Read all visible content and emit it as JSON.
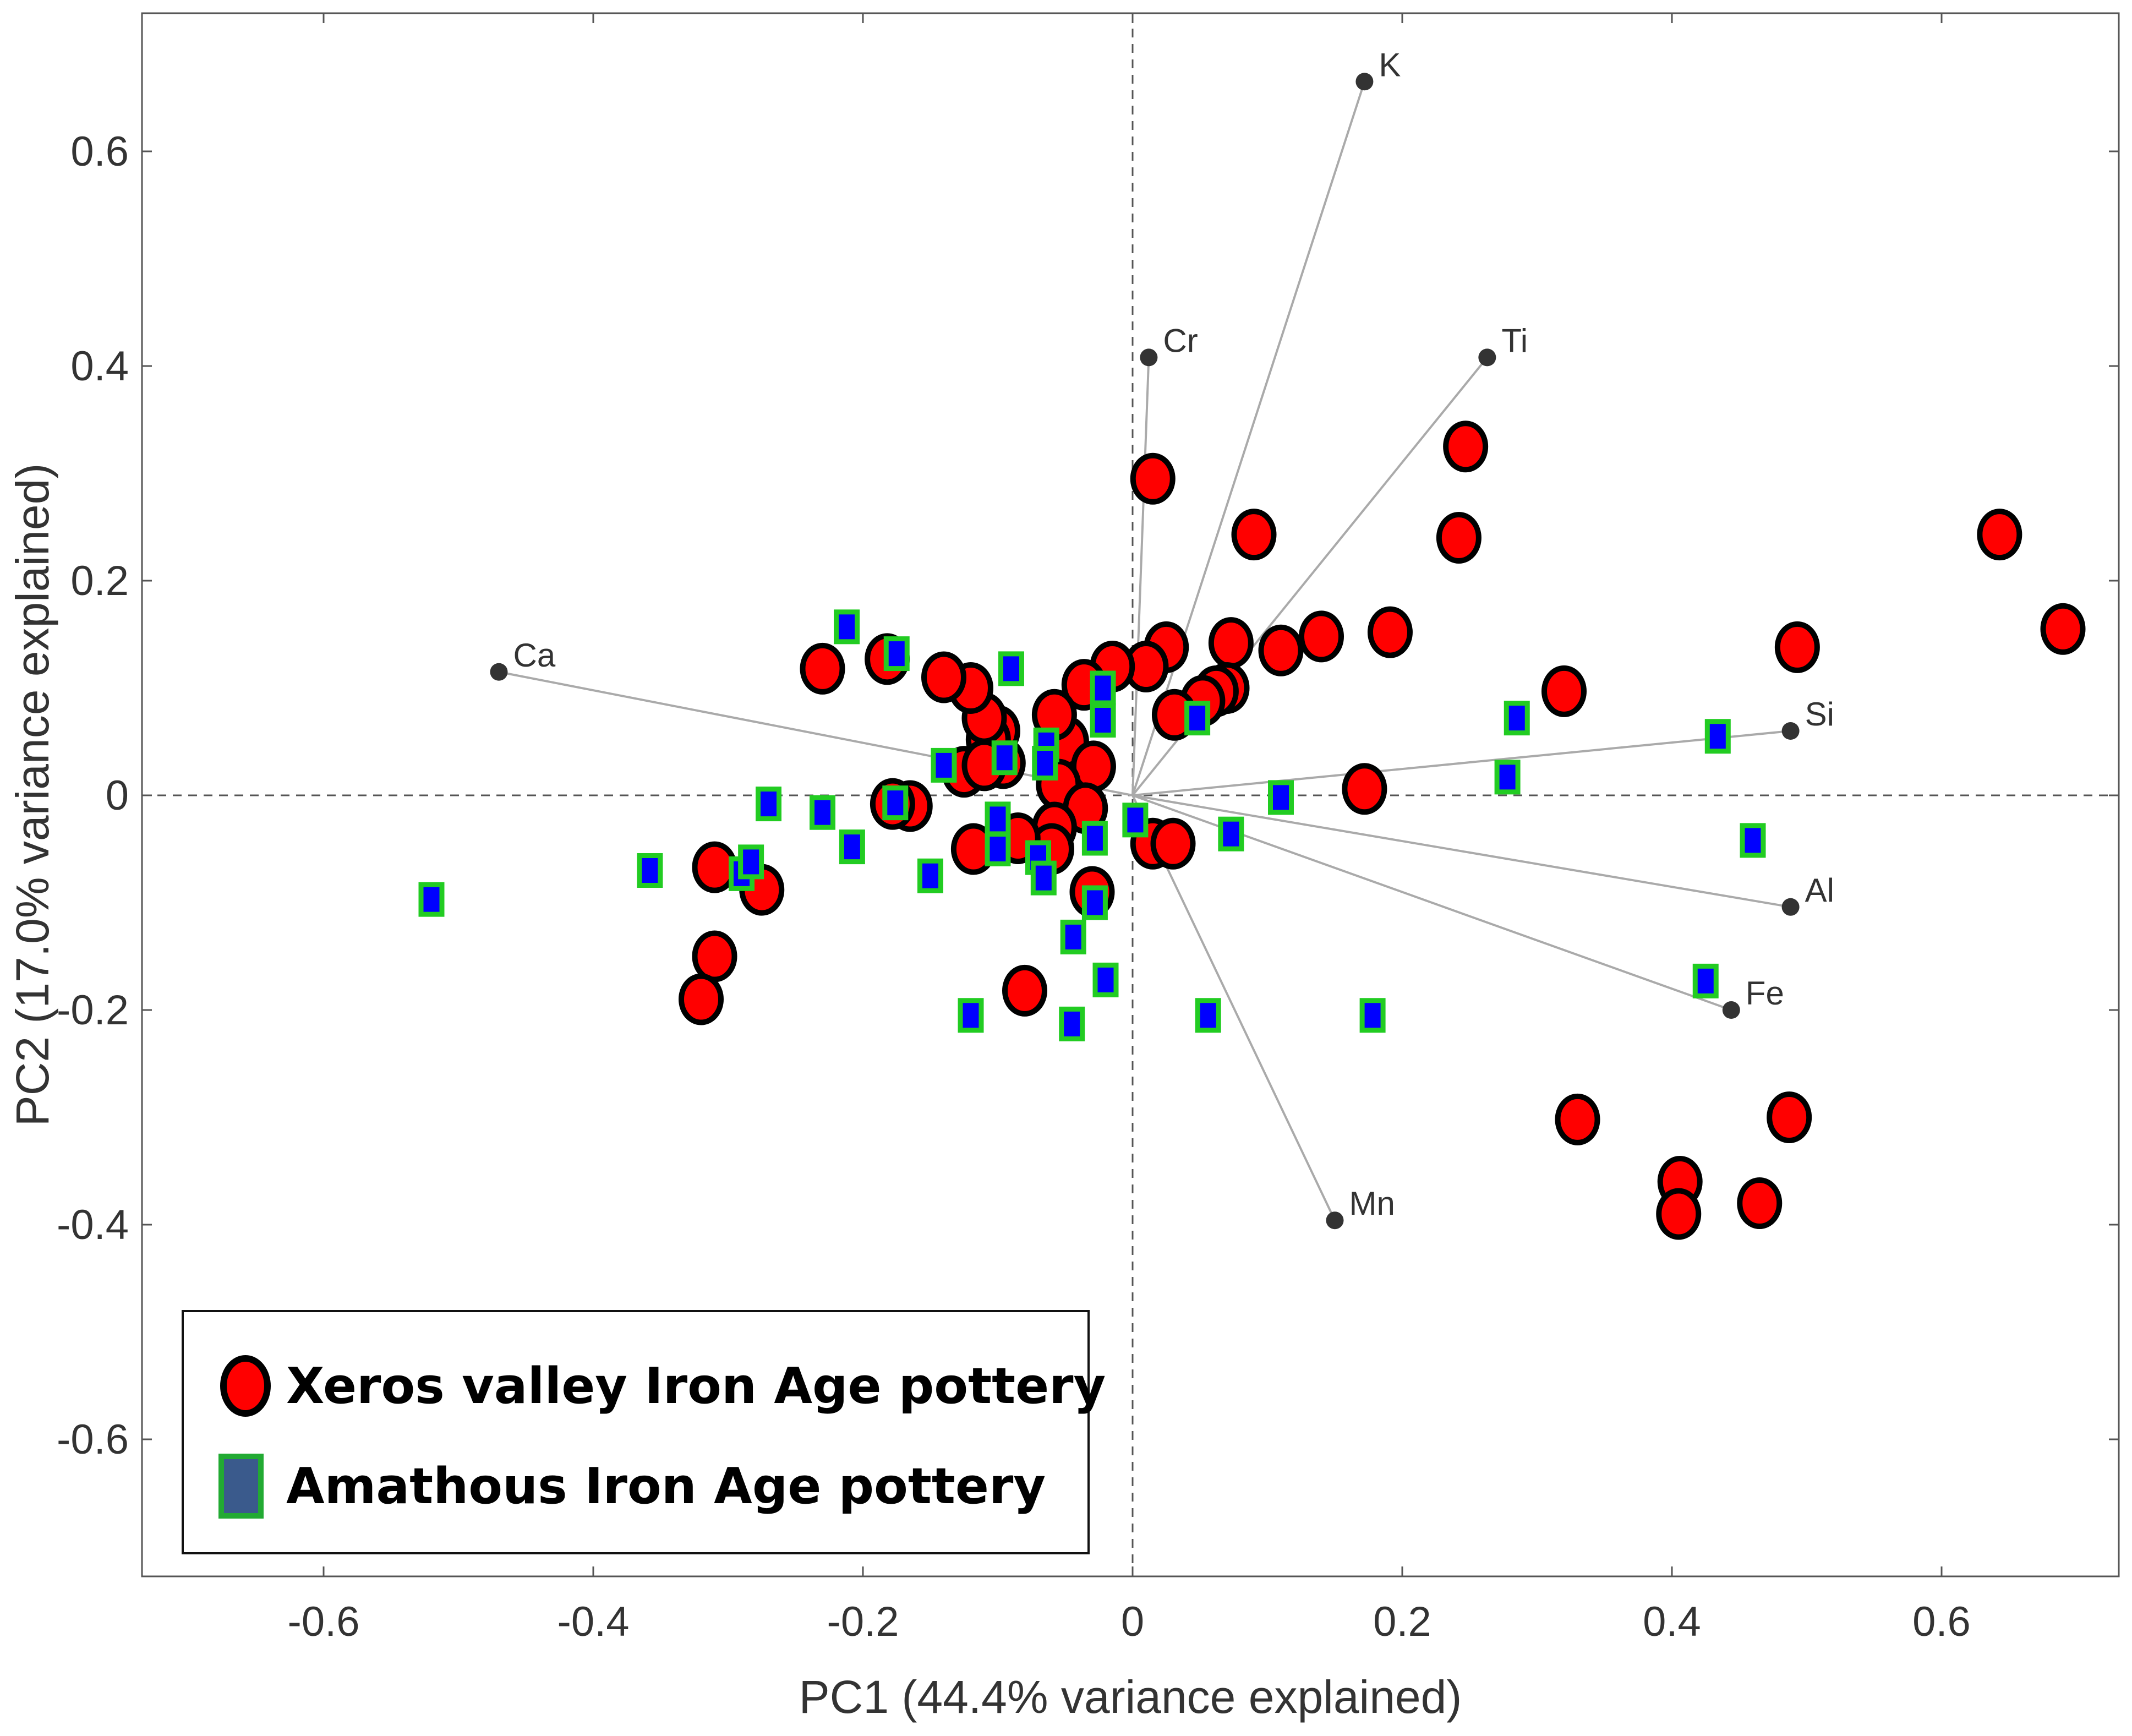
{
  "chart_data": {
    "type": "scatter",
    "title": "",
    "xlabel": "PC1 (44.4% variance explained)",
    "ylabel": "PC2 (17.0% variance explained)",
    "xlim": [
      -0.73,
      0.73
    ],
    "ylim": [
      -0.73,
      0.73
    ],
    "xticks": [
      -0.6,
      -0.4,
      -0.2,
      0,
      0.2,
      0.4,
      0.6
    ],
    "yticks": [
      -0.6,
      -0.4,
      -0.2,
      0,
      0.2,
      0.4,
      0.6
    ],
    "xtick_labels": [
      "-0.6",
      "-0.4",
      "-0.2",
      "0",
      "0.2",
      "0.4",
      "0.6"
    ],
    "ytick_labels": [
      "-0.6",
      "-0.4",
      "-0.2",
      "0",
      "0.2",
      "0.4",
      "0.6"
    ],
    "reference_lines": {
      "x": 0,
      "y": 0,
      "style": "dashed"
    },
    "grid": false,
    "legend_position": "bottom-left",
    "loadings": [
      {
        "name": "Ca",
        "x": -0.47,
        "y": 0.115
      },
      {
        "name": "Cr",
        "x": 0.012,
        "y": 0.408
      },
      {
        "name": "K",
        "x": 0.172,
        "y": 0.665
      },
      {
        "name": "Ti",
        "x": 0.263,
        "y": 0.408
      },
      {
        "name": "Si",
        "x": 0.488,
        "y": 0.06
      },
      {
        "name": "Al",
        "x": 0.488,
        "y": -0.104
      },
      {
        "name": "Fe",
        "x": 0.444,
        "y": -0.2
      },
      {
        "name": "Mn",
        "x": 0.15,
        "y": -0.396
      }
    ],
    "series": [
      {
        "name": "Xeros valley Iron Age pottery",
        "marker": "ellipse",
        "color": "#ff0000",
        "edge_color": "#000000",
        "points": [
          [
            0.69,
            0.155
          ],
          [
            0.643,
            0.243
          ],
          [
            0.493,
            0.138
          ],
          [
            0.32,
            0.097
          ],
          [
            0.191,
            0.152
          ],
          [
            0.14,
            0.148
          ],
          [
            0.11,
            0.135
          ],
          [
            0.073,
            0.142
          ],
          [
            0.07,
            0.1
          ],
          [
            0.062,
            0.097
          ],
          [
            0.052,
            0.088
          ],
          [
            0.031,
            0.075
          ],
          [
            0.025,
            0.138
          ],
          [
            0.01,
            0.12
          ],
          [
            -0.015,
            0.12
          ],
          [
            0.015,
            0.295
          ],
          [
            0.09,
            0.243
          ],
          [
            0.247,
            0.325
          ],
          [
            0.242,
            0.24
          ],
          [
            -0.036,
            0.103
          ],
          [
            -0.049,
            0.05
          ],
          [
            -0.029,
            0.027
          ],
          [
            -0.058,
            0.075
          ],
          [
            -0.055,
            0.01
          ],
          [
            -0.035,
            -0.012
          ],
          [
            -0.058,
            -0.03
          ],
          [
            -0.06,
            -0.05
          ],
          [
            -0.085,
            -0.04
          ],
          [
            -0.096,
            0.03
          ],
          [
            -0.1,
            0.06
          ],
          [
            -0.107,
            0.052
          ],
          [
            -0.11,
            0.072
          ],
          [
            -0.12,
            0.1
          ],
          [
            -0.125,
            0.022
          ],
          [
            -0.14,
            0.11
          ],
          [
            -0.11,
            0.028
          ],
          [
            -0.165,
            -0.01
          ],
          [
            -0.178,
            -0.008
          ],
          [
            -0.23,
            0.118
          ],
          [
            -0.182,
            0.127
          ],
          [
            -0.118,
            -0.05
          ],
          [
            -0.08,
            -0.182
          ],
          [
            -0.03,
            -0.09
          ],
          [
            0.015,
            -0.045
          ],
          [
            0.03,
            -0.045
          ],
          [
            0.172,
            0.006
          ],
          [
            -0.275,
            -0.088
          ],
          [
            -0.31,
            -0.067
          ],
          [
            -0.31,
            -0.15
          ],
          [
            -0.32,
            -0.19
          ],
          [
            0.33,
            -0.302
          ],
          [
            0.406,
            -0.36
          ],
          [
            0.405,
            -0.39
          ],
          [
            0.465,
            -0.38
          ],
          [
            0.487,
            -0.3
          ]
        ]
      },
      {
        "name": "Amathous Iron Age pottery",
        "marker": "square",
        "color": "#0000ff",
        "edge_color": "#22cc22",
        "points": [
          [
            -0.52,
            -0.097
          ],
          [
            -0.358,
            -0.07
          ],
          [
            -0.29,
            -0.073
          ],
          [
            -0.283,
            -0.062
          ],
          [
            -0.27,
            -0.008
          ],
          [
            -0.23,
            -0.016
          ],
          [
            -0.208,
            -0.048
          ],
          [
            -0.212,
            0.157
          ],
          [
            -0.175,
            0.132
          ],
          [
            -0.176,
            -0.007
          ],
          [
            -0.15,
            -0.075
          ],
          [
            -0.14,
            0.028
          ],
          [
            -0.12,
            -0.205
          ],
          [
            -0.1,
            -0.022
          ],
          [
            -0.1,
            -0.05
          ],
          [
            -0.095,
            0.035
          ],
          [
            -0.09,
            0.118
          ],
          [
            -0.07,
            -0.058
          ],
          [
            -0.064,
            0.047
          ],
          [
            -0.065,
            0.03
          ],
          [
            -0.066,
            -0.077
          ],
          [
            -0.045,
            -0.213
          ],
          [
            -0.044,
            -0.132
          ],
          [
            -0.028,
            -0.1
          ],
          [
            -0.028,
            -0.04
          ],
          [
            -0.022,
            0.1
          ],
          [
            -0.022,
            0.07
          ],
          [
            -0.02,
            -0.172
          ],
          [
            0.002,
            -0.023
          ],
          [
            0.048,
            0.072
          ],
          [
            0.056,
            -0.205
          ],
          [
            0.073,
            -0.036
          ],
          [
            0.11,
            -0.002
          ],
          [
            0.178,
            -0.205
          ],
          [
            0.278,
            0.017
          ],
          [
            0.285,
            0.072
          ],
          [
            0.425,
            -0.173
          ],
          [
            0.434,
            0.055
          ],
          [
            0.46,
            -0.042
          ]
        ]
      }
    ]
  }
}
